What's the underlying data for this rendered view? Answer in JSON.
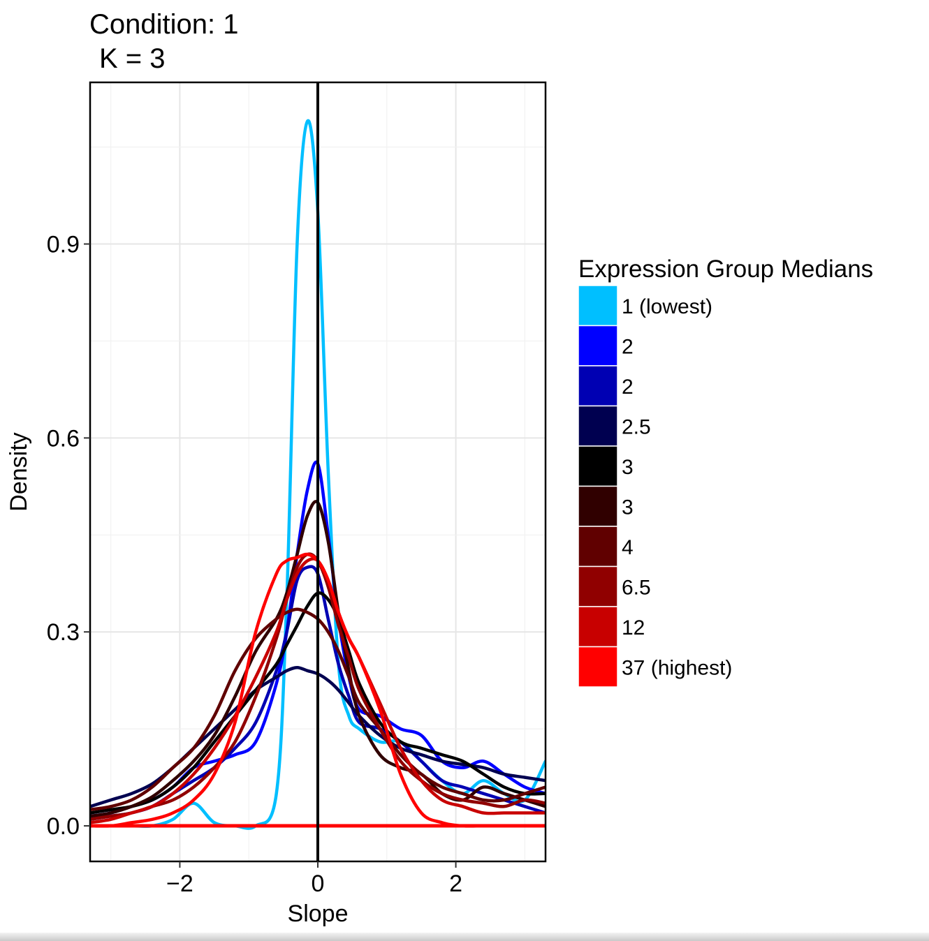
{
  "chart_data": {
    "type": "line",
    "title": "Condition: 1",
    "subtitle": "K = 3",
    "xlabel": "Slope",
    "ylabel": "Density",
    "xlim": [
      -3.3,
      3.3
    ],
    "ylim": [
      -0.055,
      1.15
    ],
    "x_ticks": [
      -2,
      0,
      2
    ],
    "x_tick_labels": [
      "−2",
      "0",
      "2"
    ],
    "y_ticks": [
      0.0,
      0.3,
      0.6,
      0.9
    ],
    "y_tick_labels": [
      "0.0",
      "0.3",
      "0.6",
      "0.9"
    ],
    "grid": true,
    "vline_x": 0,
    "hline_y": 0,
    "legend": {
      "title": "Expression Group Medians",
      "position": "right"
    },
    "x": [
      -3.3,
      -3.0,
      -2.7,
      -2.4,
      -2.1,
      -1.8,
      -1.5,
      -1.2,
      -0.9,
      -0.6,
      -0.45,
      -0.3,
      -0.15,
      0.0,
      0.15,
      0.3,
      0.45,
      0.6,
      0.9,
      1.2,
      1.5,
      1.8,
      2.1,
      2.4,
      2.7,
      3.0,
      3.3
    ],
    "series": [
      {
        "name": "1 (lowest)",
        "color": "#00bfff",
        "values": [
          0.0,
          0.0,
          0.0,
          0.0,
          0.01,
          0.035,
          0.005,
          0.0,
          0.0,
          0.05,
          0.35,
          0.9,
          1.09,
          0.95,
          0.55,
          0.25,
          0.17,
          0.15,
          0.13,
          0.13,
          0.1,
          0.07,
          0.05,
          0.07,
          0.05,
          0.04,
          0.1
        ]
      },
      {
        "name": "2",
        "color": "#0000ff",
        "values": [
          0.015,
          0.02,
          0.03,
          0.04,
          0.06,
          0.09,
          0.1,
          0.11,
          0.13,
          0.22,
          0.3,
          0.42,
          0.52,
          0.56,
          0.45,
          0.32,
          0.23,
          0.18,
          0.17,
          0.15,
          0.14,
          0.1,
          0.09,
          0.1,
          0.08,
          0.06,
          0.05
        ]
      },
      {
        "name": "2",
        "color": "#0000b3",
        "values": [
          0.01,
          0.015,
          0.02,
          0.03,
          0.05,
          0.07,
          0.09,
          0.12,
          0.16,
          0.24,
          0.3,
          0.38,
          0.4,
          0.39,
          0.32,
          0.25,
          0.2,
          0.16,
          0.15,
          0.13,
          0.1,
          0.07,
          0.06,
          0.05,
          0.04,
          0.03,
          0.02
        ]
      },
      {
        "name": "2.5",
        "color": "#000050",
        "values": [
          0.03,
          0.04,
          0.05,
          0.065,
          0.09,
          0.12,
          0.15,
          0.18,
          0.21,
          0.23,
          0.24,
          0.245,
          0.24,
          0.235,
          0.225,
          0.21,
          0.19,
          0.17,
          0.14,
          0.12,
          0.11,
          0.1,
          0.095,
          0.09,
          0.08,
          0.075,
          0.07
        ]
      },
      {
        "name": "3",
        "color": "#000000",
        "values": [
          0.02,
          0.025,
          0.03,
          0.04,
          0.06,
          0.09,
          0.13,
          0.17,
          0.21,
          0.25,
          0.28,
          0.31,
          0.34,
          0.36,
          0.35,
          0.32,
          0.27,
          0.22,
          0.16,
          0.13,
          0.12,
          0.11,
          0.1,
          0.08,
          0.06,
          0.05,
          0.05
        ]
      },
      {
        "name": "3",
        "color": "#300000",
        "values": [
          0.015,
          0.02,
          0.03,
          0.045,
          0.07,
          0.1,
          0.14,
          0.2,
          0.27,
          0.32,
          0.36,
          0.42,
          0.48,
          0.5,
          0.44,
          0.33,
          0.24,
          0.17,
          0.11,
          0.09,
          0.08,
          0.05,
          0.04,
          0.06,
          0.05,
          0.04,
          0.03
        ]
      },
      {
        "name": "4",
        "color": "#600000",
        "values": [
          0.025,
          0.03,
          0.04,
          0.06,
          0.09,
          0.12,
          0.17,
          0.24,
          0.29,
          0.32,
          0.33,
          0.335,
          0.33,
          0.32,
          0.3,
          0.27,
          0.23,
          0.19,
          0.15,
          0.11,
          0.08,
          0.06,
          0.05,
          0.04,
          0.04,
          0.05,
          0.06
        ]
      },
      {
        "name": "6.5",
        "color": "#900000",
        "values": [
          0.01,
          0.015,
          0.02,
          0.03,
          0.04,
          0.06,
          0.09,
          0.13,
          0.2,
          0.29,
          0.35,
          0.4,
          0.42,
          0.41,
          0.37,
          0.31,
          0.26,
          0.21,
          0.15,
          0.1,
          0.07,
          0.05,
          0.04,
          0.035,
          0.03,
          0.04,
          0.035
        ]
      },
      {
        "name": "12",
        "color": "#c80000",
        "values": [
          0.005,
          0.01,
          0.02,
          0.03,
          0.05,
          0.08,
          0.12,
          0.17,
          0.23,
          0.3,
          0.35,
          0.39,
          0.41,
          0.41,
          0.38,
          0.33,
          0.29,
          0.26,
          0.19,
          0.12,
          0.07,
          0.04,
          0.03,
          0.02,
          0.02,
          0.02,
          0.02
        ]
      },
      {
        "name": "37 (highest)",
        "color": "#ff0000",
        "values": [
          0.0,
          0.0,
          0.005,
          0.01,
          0.02,
          0.04,
          0.08,
          0.16,
          0.3,
          0.39,
          0.41,
          0.415,
          0.42,
          0.41,
          0.38,
          0.33,
          0.29,
          0.26,
          0.18,
          0.08,
          0.02,
          0.005,
          0.0,
          0.0,
          0.0,
          0.0,
          0.0
        ]
      }
    ]
  }
}
